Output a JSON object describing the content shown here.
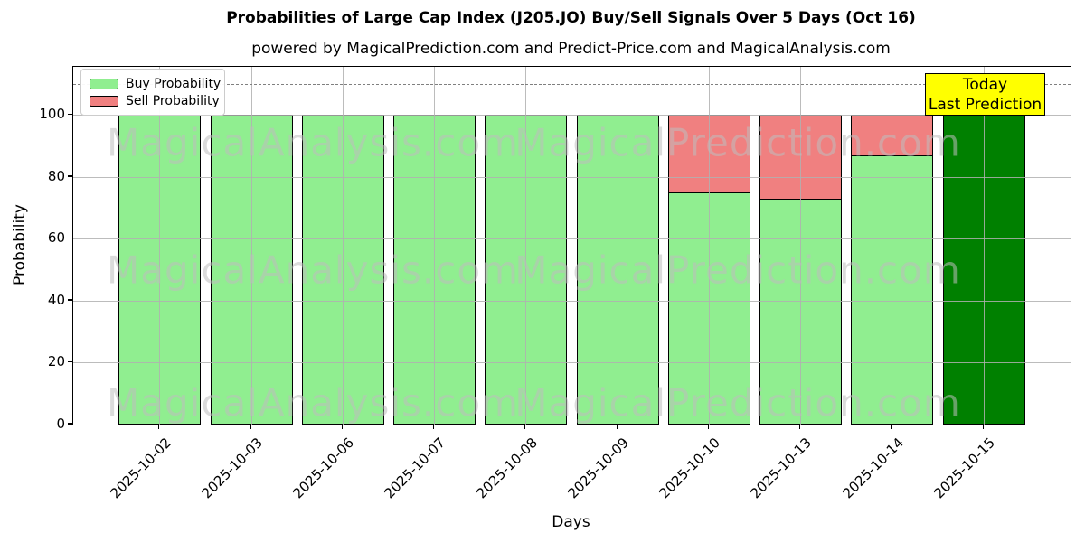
{
  "header": {
    "title": "Probabilities of Large Cap Index (J205.JO) Buy/Sell Signals Over 5 Days (Oct 16)",
    "subtitle": "powered by MagicalPrediction.com and Predict-Price.com and MagicalAnalysis.com"
  },
  "axes": {
    "ylabel": "Probability",
    "xlabel": "Days",
    "yticks": [
      0,
      20,
      40,
      60,
      80,
      100
    ],
    "ylim": [
      0,
      115.6
    ],
    "grid": true,
    "dashed_line_y": 110
  },
  "legend": {
    "position": "upper-left",
    "items": [
      {
        "label": "Buy Probability",
        "color": "#90EE90"
      },
      {
        "label": "Sell Probability",
        "color": "#F08080"
      }
    ]
  },
  "annotation": {
    "lines": [
      "Today",
      "Last Prediction"
    ],
    "bg_color": "#FFFF00"
  },
  "watermarks": [
    "MagicalAnalysis.com",
    "MagicalPrediction.com"
  ],
  "colors": {
    "buy": "#90EE90",
    "sell": "#F08080",
    "today_bar": "#008000",
    "bar_edge": "#000000",
    "grid": "#B0B0B0",
    "dashed_line": "#7F7F7F",
    "annotation_bg": "#FFFF00"
  },
  "chart_data": {
    "type": "bar",
    "stacked": true,
    "categories": [
      "2025-10-02",
      "2025-10-03",
      "2025-10-06",
      "2025-10-07",
      "2025-10-08",
      "2025-10-09",
      "2025-10-10",
      "2025-10-13",
      "2025-10-14",
      "2025-10-15"
    ],
    "series": [
      {
        "name": "Buy Probability",
        "color": "#90EE90",
        "values": [
          100,
          100,
          100,
          100,
          100,
          100,
          75,
          73,
          87,
          100
        ]
      },
      {
        "name": "Sell Probability",
        "color": "#F08080",
        "values": [
          0,
          0,
          0,
          0,
          0,
          0,
          25,
          27,
          13,
          0
        ]
      }
    ],
    "today_bar": {
      "category": "2025-10-15",
      "index": 9,
      "color": "#008000",
      "note": "Today / Last Prediction"
    },
    "title": "Probabilities of Large Cap Index (J205.JO) Buy/Sell Signals Over 5 Days (Oct 16)",
    "xlabel": "Days",
    "ylabel": "Probability",
    "ylim": [
      0,
      115.6
    ],
    "legend_position": "upper left"
  }
}
